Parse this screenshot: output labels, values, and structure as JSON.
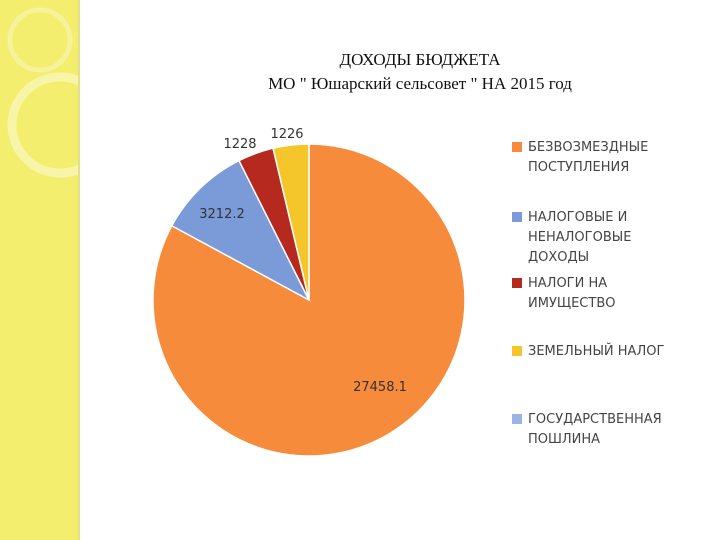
{
  "title_line1": "ДОХОДЫ БЮДЖЕТА",
  "title_line2": "МО \" Юшарский сельсовет \" НА 2015 год",
  "chart_data": {
    "type": "pie",
    "title": "ДОХОДЫ БЮДЖЕТА МО \" Юшарский сельсовет \" НА 2015 год",
    "slices": [
      {
        "label": "БЕЗВОЗМЕЗДНЫЕ ПОСТУПЛЕНИЯ",
        "value": 27458.1,
        "display": "27458.1",
        "color": "#f68b3c"
      },
      {
        "label": "НАЛОГОВЫЕ И НЕНАЛОГОВЫЕ ДОХОДЫ",
        "value": 3212.2,
        "display": "3212.2",
        "color": "#7b9bd8"
      },
      {
        "label": "НАЛОГИ НА ИМУЩЕСТВО",
        "value": 1228,
        "display": "1228",
        "color": "#b5291e"
      },
      {
        "label": "ЗЕМЕЛЬНЫЙ НАЛОГ",
        "value": 1226,
        "display": "1226",
        "color": "#f5c62b"
      },
      {
        "label": "ГОСУДАРСТВЕННАЯ ПОШЛИНА",
        "value": 0,
        "display": "",
        "color": "#9db3e3"
      }
    ],
    "legend": {
      "position": "right",
      "items": [
        "БЕЗВОЗМЕЗДНЫЕ\nПОСТУПЛЕНИЯ",
        "НАЛОГОВЫЕ И\nНЕНАЛОГОВЫЕ\nДОХОДЫ",
        "НАЛОГИ НА\nИМУЩЕСТВО",
        "ЗЕМЕЛЬНЫЙ НАЛОГ",
        "ГОСУДАРСТВЕННАЯ\nПОШЛИНА"
      ]
    }
  }
}
